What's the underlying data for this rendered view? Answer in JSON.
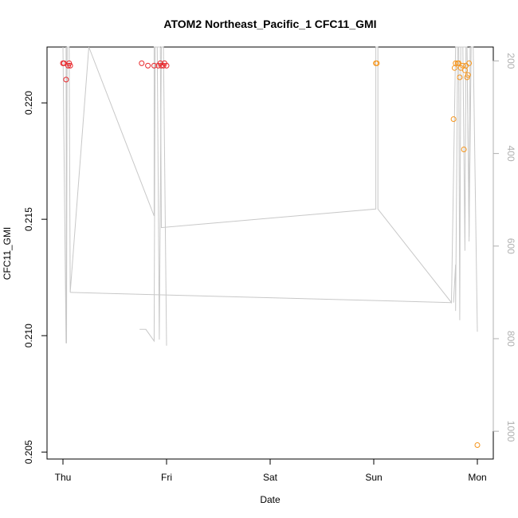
{
  "chart_data": {
    "type": "scatter",
    "title": "ATOM2 Northeast_Pacific_1 CFC11_GMI",
    "xlabel": "Date",
    "ylabel": "CFC11_GMI",
    "x_ticks": [
      "Thu",
      "Fri",
      "Sat",
      "Sun",
      "Mon"
    ],
    "x_range_days": [
      -0.1,
      4.16
    ],
    "y_ticks": [
      0.205,
      0.21,
      0.215,
      0.22
    ],
    "ylim": [
      0.2047,
      0.2224
    ],
    "y2_ticks": [
      200,
      400,
      600,
      800,
      1000
    ],
    "y2lim": [
      1060,
      170
    ],
    "grid": false,
    "series": [
      {
        "color": "#e8262a",
        "points": [
          [
            0.0,
            0.2217
          ],
          [
            0.01,
            0.2217
          ],
          [
            0.03,
            0.221
          ],
          [
            0.05,
            0.2216
          ],
          [
            0.06,
            0.2217
          ],
          [
            0.07,
            0.2216
          ],
          [
            0.76,
            0.2217
          ],
          [
            0.82,
            0.2216
          ],
          [
            0.88,
            0.2216
          ],
          [
            0.92,
            0.2216
          ],
          [
            0.94,
            0.2217
          ],
          [
            0.95,
            0.2216
          ],
          [
            0.97,
            0.2216
          ],
          [
            0.98,
            0.2217
          ],
          [
            1.0,
            0.2216
          ]
        ]
      },
      {
        "color": "#f5961e",
        "points": [
          [
            3.02,
            0.2217
          ],
          [
            3.03,
            0.2217
          ],
          [
            3.77,
            0.2193
          ],
          [
            3.78,
            0.2215
          ],
          [
            3.79,
            0.2217
          ],
          [
            3.81,
            0.2217
          ],
          [
            3.82,
            0.2217
          ],
          [
            3.83,
            0.2211
          ],
          [
            3.84,
            0.2215
          ],
          [
            3.86,
            0.2216
          ],
          [
            3.87,
            0.218
          ],
          [
            3.88,
            0.2214
          ],
          [
            3.89,
            0.2216
          ],
          [
            3.9,
            0.2211
          ],
          [
            3.91,
            0.2212
          ],
          [
            3.92,
            0.2217
          ],
          [
            4.0,
            0.2053
          ]
        ]
      }
    ],
    "secondary_line": {
      "color": "#c8c8c8",
      "points": [
        [
          0.0,
          170
        ],
        [
          0.03,
          810
        ],
        [
          0.04,
          170
        ],
        [
          0.06,
          170
        ],
        [
          0.07,
          700
        ],
        [
          0.25,
          170
        ],
        [
          0.88,
          535
        ],
        [
          0.88,
          170
        ],
        [
          0.94,
          170
        ],
        [
          0.95,
          560
        ],
        [
          3.02,
          520
        ],
        [
          3.02,
          170
        ],
        [
          3.04,
          170
        ],
        [
          3.04,
          520
        ],
        [
          3.75,
          722
        ],
        [
          3.79,
          170
        ],
        [
          3.82,
          170
        ],
        [
          3.86,
          170
        ],
        [
          3.9,
          170
        ],
        [
          3.92,
          580
        ],
        [
          3.94,
          170
        ],
        [
          3.96,
          170
        ],
        [
          4.0,
          785
        ]
      ]
    },
    "secondary_spikes": [
      [
        [
          0.03,
          170
        ],
        [
          0.035,
          810
        ],
        [
          0.04,
          170
        ]
      ],
      [
        [
          0.74,
          780
        ],
        [
          0.8,
          780
        ],
        [
          0.88,
          805
        ],
        [
          0.89,
          170
        ],
        [
          0.91,
          170
        ],
        [
          0.93,
          802
        ],
        [
          0.95,
          170
        ],
        [
          0.97,
          170
        ],
        [
          1.0,
          815
        ]
      ],
      [
        [
          3.77,
          722
        ],
        [
          3.79,
          640
        ],
        [
          3.79,
          740
        ],
        [
          3.81,
          170
        ],
        [
          3.82,
          170
        ],
        [
          3.83,
          760
        ],
        [
          3.84,
          170
        ],
        [
          3.86,
          170
        ],
        [
          3.88,
          610
        ],
        [
          3.89,
          170
        ],
        [
          3.9,
          170
        ],
        [
          3.92,
          550
        ],
        [
          3.92,
          590
        ],
        [
          3.93,
          170
        ]
      ]
    ],
    "secondary_flat": [
      [
        0.07,
        700
      ],
      [
        3.75,
        722
      ]
    ]
  }
}
